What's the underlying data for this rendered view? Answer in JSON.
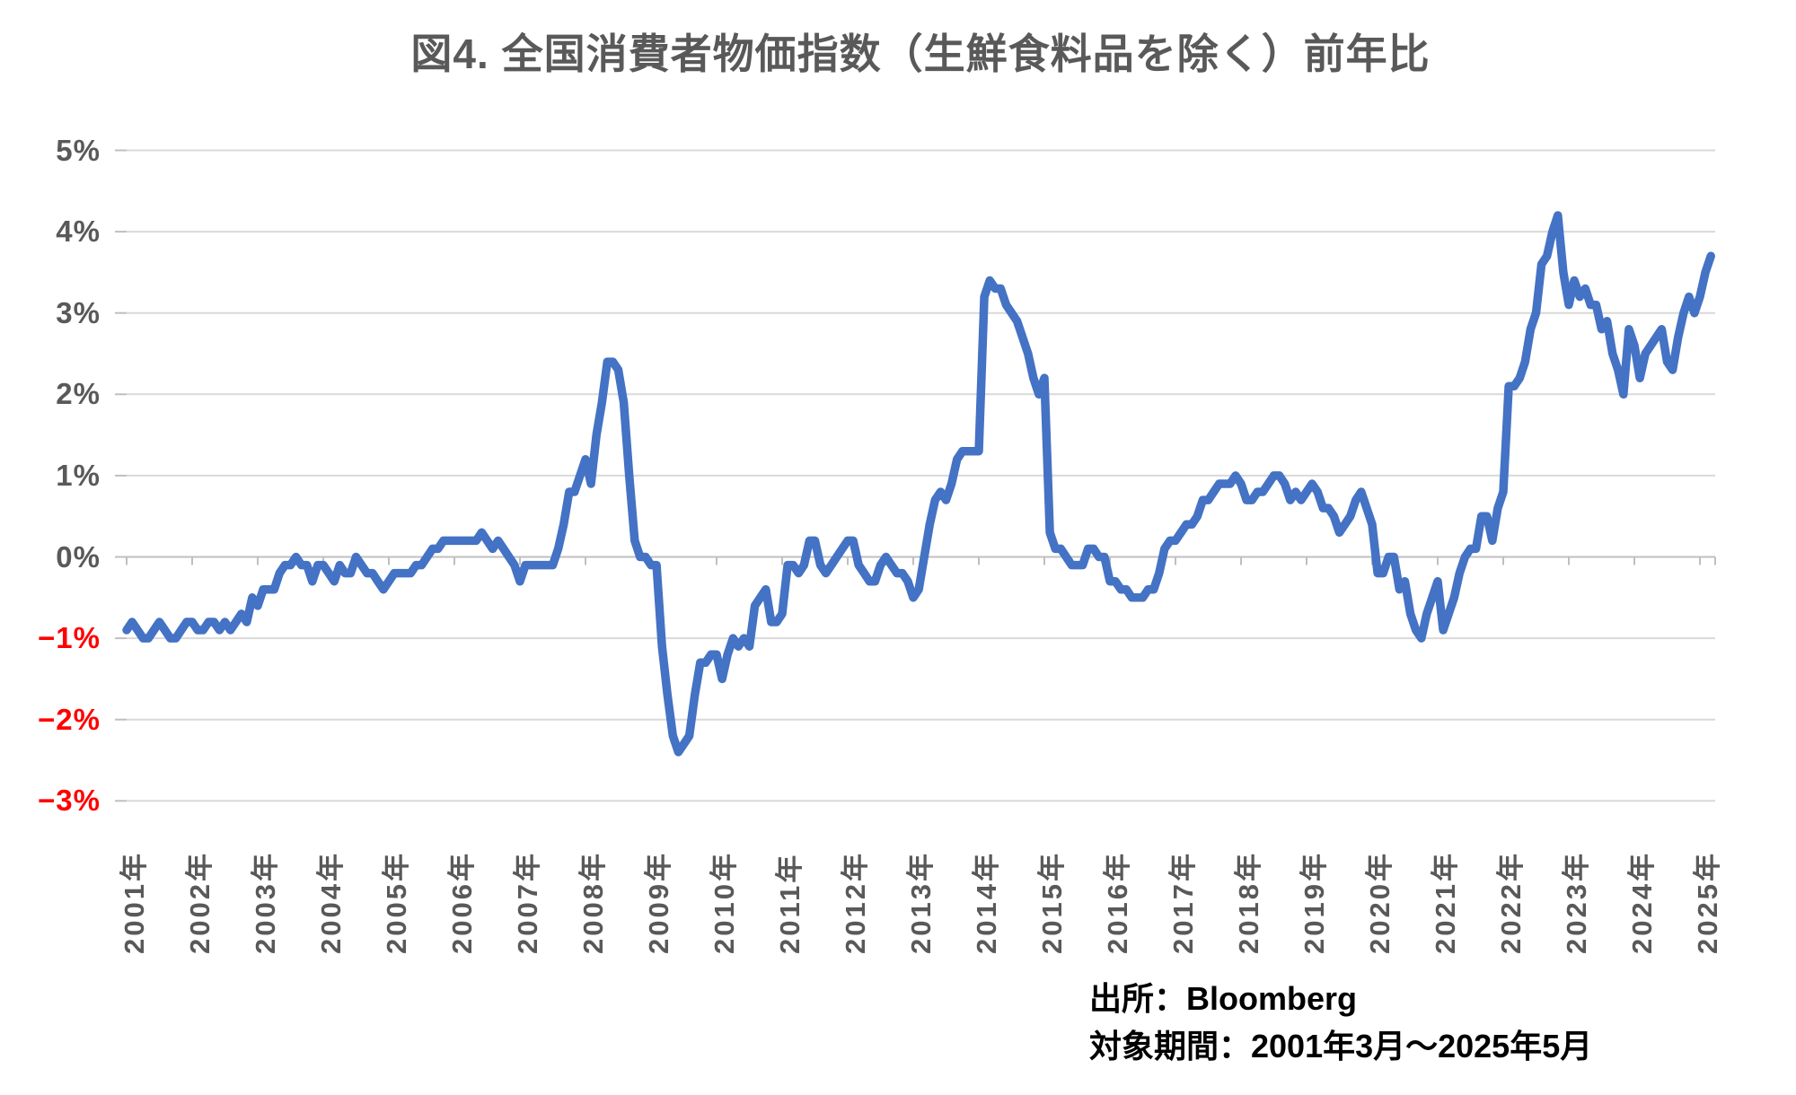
{
  "title": "図4. 全国消費者物価指数（生鮮食料品を除く）前年比",
  "source": {
    "line1": "出所：Bloomberg",
    "line2": "対象期間：2001年3月～2025年5月"
  },
  "colors": {
    "line": "#4472C4",
    "grid": "#D9D9D9",
    "axis": "#BFBFBF",
    "label": "#595959",
    "negative_label": "#FF0000",
    "source_text": "#000000"
  },
  "chart_data": {
    "type": "line",
    "title": "図4. 全国消費者物価指数（生鮮食料品を除く）前年比",
    "unit": "%",
    "frequency": "monthly",
    "start": "2001-03",
    "end": "2025-05",
    "ylim": [
      -3,
      5
    ],
    "grid": true,
    "legend": false,
    "y_tick_labels": [
      "5%",
      "4%",
      "3%",
      "2%",
      "1%",
      "0%",
      "−1%",
      "−2%",
      "−3%"
    ],
    "y_tick_values": [
      5,
      4,
      3,
      2,
      1,
      0,
      -1,
      -2,
      -3
    ],
    "x_tick_labels": [
      "2001年",
      "2002年",
      "2003年",
      "2004年",
      "2005年",
      "2006年",
      "2007年",
      "2008年",
      "2009年",
      "2010年",
      "2011年",
      "2012年",
      "2013年",
      "2014年",
      "2015年",
      "2016年",
      "2017年",
      "2018年",
      "2019年",
      "2020年",
      "2021年",
      "2022年",
      "2023年",
      "2024年",
      "2025年"
    ],
    "series": [
      {
        "name": "全国消費者物価指数（生鮮食料品を除く）前年比",
        "values": [
          -0.9,
          -0.8,
          -0.9,
          -1.0,
          -1.0,
          -0.9,
          -0.8,
          -0.9,
          -1.0,
          -1.0,
          -0.9,
          -0.8,
          -0.8,
          -0.9,
          -0.9,
          -0.8,
          -0.8,
          -0.9,
          -0.8,
          -0.9,
          -0.8,
          -0.7,
          -0.8,
          -0.5,
          -0.6,
          -0.4,
          -0.4,
          -0.4,
          -0.2,
          -0.1,
          -0.1,
          0.0,
          -0.1,
          -0.1,
          -0.3,
          -0.1,
          -0.1,
          -0.2,
          -0.3,
          -0.1,
          -0.2,
          -0.2,
          0.0,
          -0.1,
          -0.2,
          -0.2,
          -0.3,
          -0.4,
          -0.3,
          -0.2,
          -0.2,
          -0.2,
          -0.2,
          -0.1,
          -0.1,
          0.0,
          0.1,
          0.1,
          0.2,
          0.2,
          0.2,
          0.2,
          0.2,
          0.2,
          0.2,
          0.3,
          0.2,
          0.1,
          0.2,
          0.1,
          0.0,
          -0.1,
          -0.3,
          -0.1,
          -0.1,
          -0.1,
          -0.1,
          -0.1,
          -0.1,
          0.1,
          0.4,
          0.8,
          0.8,
          1.0,
          1.2,
          0.9,
          1.5,
          1.9,
          2.4,
          2.4,
          2.3,
          1.9,
          1.0,
          0.2,
          0.0,
          0.0,
          -0.1,
          -0.1,
          -1.1,
          -1.7,
          -2.2,
          -2.4,
          -2.3,
          -2.2,
          -1.7,
          -1.3,
          -1.3,
          -1.2,
          -1.2,
          -1.5,
          -1.2,
          -1.0,
          -1.1,
          -1.0,
          -1.1,
          -0.6,
          -0.5,
          -0.4,
          -0.8,
          -0.8,
          -0.7,
          -0.1,
          -0.1,
          -0.2,
          -0.1,
          0.2,
          0.2,
          -0.1,
          -0.2,
          -0.1,
          0.0,
          0.1,
          0.2,
          0.2,
          -0.1,
          -0.2,
          -0.3,
          -0.3,
          -0.1,
          0.0,
          -0.1,
          -0.2,
          -0.2,
          -0.3,
          -0.5,
          -0.4,
          0.0,
          0.4,
          0.7,
          0.8,
          0.7,
          0.9,
          1.2,
          1.3,
          1.3,
          1.3,
          1.3,
          3.2,
          3.4,
          3.3,
          3.3,
          3.1,
          3.0,
          2.9,
          2.7,
          2.5,
          2.2,
          2.0,
          2.2,
          0.3,
          0.1,
          0.1,
          0.0,
          -0.1,
          -0.1,
          -0.1,
          0.1,
          0.1,
          0.0,
          0.0,
          -0.3,
          -0.3,
          -0.4,
          -0.4,
          -0.5,
          -0.5,
          -0.5,
          -0.4,
          -0.4,
          -0.2,
          0.1,
          0.2,
          0.2,
          0.3,
          0.4,
          0.4,
          0.5,
          0.7,
          0.7,
          0.8,
          0.9,
          0.9,
          0.9,
          1.0,
          0.9,
          0.7,
          0.7,
          0.8,
          0.8,
          0.9,
          1.0,
          1.0,
          0.9,
          0.7,
          0.8,
          0.7,
          0.8,
          0.9,
          0.8,
          0.6,
          0.6,
          0.5,
          0.3,
          0.4,
          0.5,
          0.7,
          0.8,
          0.6,
          0.4,
          -0.2,
          -0.2,
          0.0,
          0.0,
          -0.4,
          -0.3,
          -0.7,
          -0.9,
          -1.0,
          -0.7,
          -0.5,
          -0.3,
          -0.9,
          -0.7,
          -0.5,
          -0.2,
          0.0,
          0.1,
          0.1,
          0.5,
          0.5,
          0.2,
          0.6,
          0.8,
          2.1,
          2.1,
          2.2,
          2.4,
          2.8,
          3.0,
          3.6,
          3.7,
          4.0,
          4.2,
          3.5,
          3.1,
          3.4,
          3.2,
          3.3,
          3.1,
          3.1,
          2.8,
          2.9,
          2.5,
          2.3,
          2.0,
          2.8,
          2.6,
          2.2,
          2.5,
          2.6,
          2.7,
          2.8,
          2.4,
          2.3,
          2.7,
          3.0,
          3.2,
          3.0,
          3.2,
          3.5,
          3.7
        ]
      }
    ]
  }
}
